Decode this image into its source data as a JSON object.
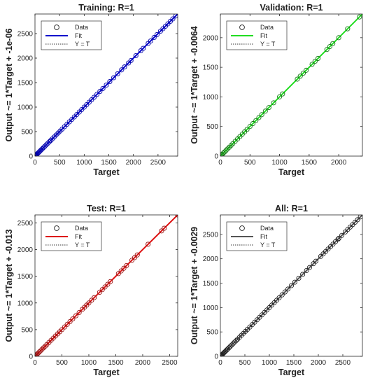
{
  "chart_data": [
    {
      "type": "scatter",
      "title": "Training: R=1",
      "xlabel": "Target",
      "ylabel": "Output ~= 1*Target + -1e-06",
      "xlim": [
        0,
        2900
      ],
      "ylim": [
        0,
        2900
      ],
      "xticks": [
        0,
        500,
        1000,
        1500,
        2000,
        2500
      ],
      "yticks": [
        0,
        500,
        1000,
        1500,
        2000,
        2500
      ],
      "fit_color": "#0000cc",
      "marker_color": "#0000aa",
      "legend": [
        "Data",
        "Fit",
        "Y = T"
      ],
      "legend_loc": "top-left",
      "fit": {
        "slope": 1,
        "intercept": -1e-06
      },
      "x": [
        0,
        10,
        20,
        30,
        45,
        60,
        75,
        90,
        110,
        130,
        150,
        175,
        200,
        230,
        260,
        290,
        320,
        350,
        390,
        430,
        470,
        510,
        550,
        600,
        650,
        700,
        750,
        800,
        850,
        900,
        950,
        1000,
        1050,
        1100,
        1150,
        1200,
        1260,
        1320,
        1380,
        1450,
        1520,
        1600,
        1680,
        1760,
        1820,
        1900,
        1950,
        2050,
        2150,
        2200,
        2300,
        2350,
        2420,
        2480,
        2550,
        2600,
        2650,
        2700,
        2750,
        2800,
        2860
      ],
      "y": [
        0,
        10,
        20,
        30,
        45,
        60,
        75,
        90,
        110,
        130,
        150,
        175,
        200,
        230,
        260,
        290,
        320,
        350,
        390,
        430,
        470,
        510,
        550,
        600,
        650,
        700,
        750,
        800,
        850,
        900,
        950,
        1000,
        1050,
        1100,
        1150,
        1200,
        1260,
        1320,
        1380,
        1450,
        1520,
        1600,
        1680,
        1760,
        1820,
        1900,
        1950,
        2050,
        2150,
        2200,
        2300,
        2350,
        2420,
        2480,
        2550,
        2600,
        2650,
        2700,
        2750,
        2800,
        2860
      ]
    },
    {
      "type": "scatter",
      "title": "Validation: R=1",
      "xlabel": "Target",
      "ylabel": "Output ~= 1*Target + -0.0064",
      "xlim": [
        0,
        2400
      ],
      "ylim": [
        0,
        2400
      ],
      "xticks": [
        0,
        500,
        1000,
        1500,
        2000
      ],
      "yticks": [
        0,
        500,
        1000,
        1500,
        2000
      ],
      "fit_color": "#22dd22",
      "marker_color": "#117711",
      "legend": [
        "Data",
        "Fit",
        "Y = T"
      ],
      "legend_loc": "top-left",
      "fit": {
        "slope": 1,
        "intercept": -0.0064
      },
      "x": [
        0,
        15,
        30,
        50,
        70,
        95,
        120,
        150,
        180,
        210,
        250,
        290,
        330,
        370,
        410,
        450,
        500,
        550,
        600,
        650,
        700,
        760,
        820,
        900,
        1000,
        1050,
        1300,
        1350,
        1400,
        1450,
        1550,
        1600,
        1650,
        1800,
        1850,
        1900,
        2000,
        2150,
        2350
      ],
      "y": [
        0,
        15,
        30,
        50,
        70,
        95,
        120,
        150,
        180,
        210,
        250,
        290,
        330,
        370,
        410,
        450,
        500,
        550,
        600,
        650,
        700,
        760,
        820,
        900,
        1000,
        1050,
        1300,
        1350,
        1400,
        1450,
        1550,
        1600,
        1650,
        1800,
        1850,
        1900,
        2000,
        2150,
        2350
      ]
    },
    {
      "type": "scatter",
      "title": "Test: R=1",
      "xlabel": "Target",
      "ylabel": "Output ~= 1*Target + -0.013",
      "xlim": [
        0,
        2650
      ],
      "ylim": [
        0,
        2650
      ],
      "xticks": [
        0,
        500,
        1000,
        1500,
        2000,
        2500
      ],
      "yticks": [
        0,
        500,
        1000,
        1500,
        2000,
        2500
      ],
      "fit_color": "#dd1111",
      "marker_color": "#991111",
      "legend": [
        "Data",
        "Fit",
        "Y = T"
      ],
      "legend_loc": "top-left",
      "fit": {
        "slope": 1,
        "intercept": -0.013
      },
      "x": [
        0,
        10,
        25,
        40,
        60,
        80,
        100,
        130,
        160,
        190,
        220,
        260,
        300,
        340,
        380,
        420,
        460,
        500,
        550,
        600,
        650,
        700,
        760,
        820,
        880,
        920,
        960,
        1000,
        1050,
        1100,
        1200,
        1250,
        1300,
        1350,
        1400,
        1550,
        1600,
        1650,
        1700,
        1800,
        1850,
        1900,
        2100,
        2350,
        2400,
        2650
      ],
      "y": [
        0,
        10,
        25,
        40,
        60,
        80,
        100,
        130,
        160,
        190,
        220,
        260,
        300,
        340,
        380,
        420,
        460,
        500,
        550,
        600,
        650,
        700,
        760,
        820,
        880,
        920,
        960,
        1000,
        1050,
        1100,
        1200,
        1250,
        1300,
        1350,
        1400,
        1550,
        1600,
        1650,
        1700,
        1800,
        1850,
        1900,
        2100,
        2350,
        2400,
        2650
      ]
    },
    {
      "type": "scatter",
      "title": "All: R=1",
      "xlabel": "Target",
      "ylabel": "Output ~= 1*Target + -0.0029",
      "xlim": [
        0,
        2900
      ],
      "ylim": [
        0,
        2900
      ],
      "xticks": [
        0,
        500,
        1000,
        1500,
        2000,
        2500
      ],
      "yticks": [
        0,
        500,
        1000,
        1500,
        2000,
        2500
      ],
      "fit_color": "#555555",
      "marker_color": "#222222",
      "legend": [
        "Data",
        "Fit",
        "Y = T"
      ],
      "legend_loc": "top-left",
      "fit": {
        "slope": 1,
        "intercept": -0.0029
      },
      "x": [
        0,
        10,
        20,
        30,
        45,
        60,
        75,
        90,
        110,
        130,
        150,
        175,
        200,
        230,
        260,
        290,
        320,
        350,
        390,
        430,
        470,
        510,
        550,
        600,
        650,
        700,
        750,
        800,
        850,
        900,
        950,
        1000,
        1050,
        1100,
        1150,
        1200,
        1260,
        1320,
        1380,
        1450,
        1520,
        1600,
        1680,
        1760,
        1820,
        1900,
        1950,
        2050,
        2100,
        2150,
        2200,
        2250,
        2300,
        2350,
        2400,
        2420,
        2480,
        2550,
        2600,
        2650,
        2700,
        2750,
        2800,
        2860
      ],
      "y": [
        0,
        10,
        20,
        30,
        45,
        60,
        75,
        90,
        110,
        130,
        150,
        175,
        200,
        230,
        260,
        290,
        320,
        350,
        390,
        430,
        470,
        510,
        550,
        600,
        650,
        700,
        750,
        800,
        850,
        900,
        950,
        1000,
        1050,
        1100,
        1150,
        1200,
        1260,
        1320,
        1380,
        1450,
        1520,
        1600,
        1680,
        1760,
        1820,
        1900,
        1950,
        2050,
        2100,
        2150,
        2200,
        2250,
        2300,
        2350,
        2400,
        2420,
        2480,
        2550,
        2600,
        2650,
        2700,
        2750,
        2800,
        2860
      ]
    }
  ]
}
